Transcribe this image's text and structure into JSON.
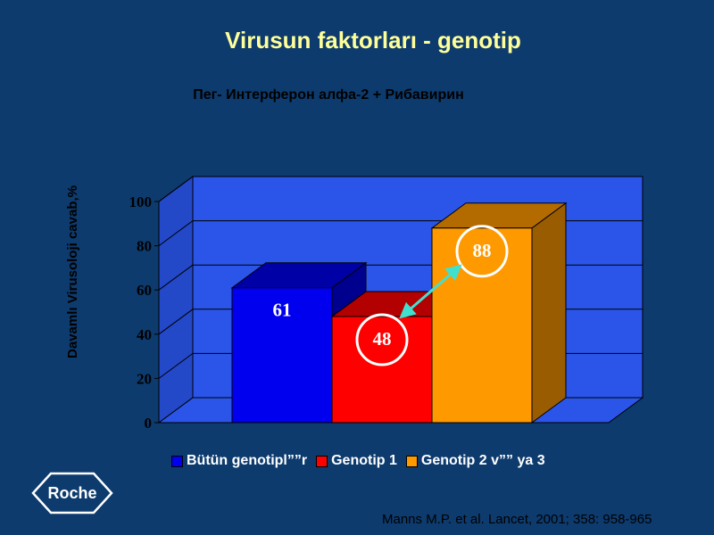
{
  "title": "Virusun faktorları - genotip",
  "subtitle": "Пег- Интерферон алфа-2 + Рибавирин",
  "logo_text": "Roche",
  "citation": "Manns M.P. et al. Lancet, 2001; 358: 958-965",
  "colors": {
    "background": "#0d3b6e",
    "title": "#ffff99",
    "plot_back": "#2a55e8",
    "arrow": "#40e0d0"
  },
  "chart_data": {
    "type": "bar",
    "title": "",
    "ylabel": "Davamlı Virusoloji cavab,%",
    "xlabel": "",
    "ylim": [
      0,
      100
    ],
    "yticks": [
      "0",
      "20",
      "40",
      "60",
      "80",
      "100"
    ],
    "grid": true,
    "legend_position": "bottom",
    "series": [
      {
        "name": "Bütün genotipl””r",
        "value": 61,
        "label": "61",
        "color": "#0000ee",
        "highlighted": false
      },
      {
        "name": "Genotip 1",
        "value": 48,
        "label": "48",
        "color": "#ff0000",
        "highlighted": true
      },
      {
        "name": "Genotip 2 v”” ya 3",
        "value": 88,
        "label": "88",
        "color": "#ff9900",
        "highlighted": true
      }
    ],
    "annotation": "double-headed arrow between 48 and 88"
  }
}
